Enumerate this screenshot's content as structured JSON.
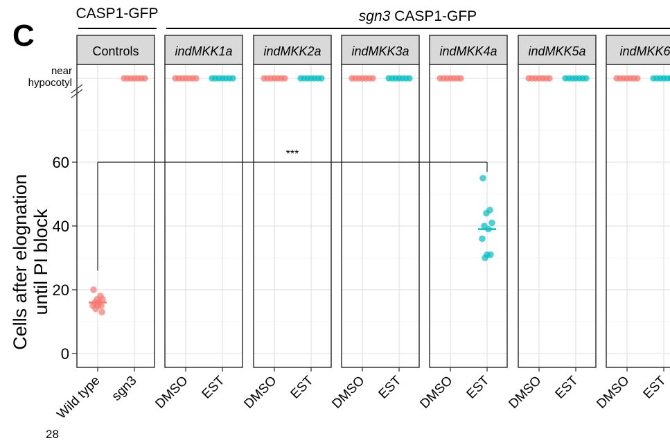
{
  "figure": {
    "panel_letter": "C",
    "page_number": "28",
    "groups": [
      {
        "label": "CASP1-GFP",
        "label_italic": "",
        "label_rest": ""
      },
      {
        "label": "",
        "label_italic": "sgn3",
        "label_rest": " CASP1-GFP"
      }
    ],
    "near_label_line1": "near",
    "near_label_line2": "hypocotyl",
    "significance": "***"
  },
  "chart_data": {
    "type": "scatter",
    "title": "",
    "xlabel": "",
    "ylabel": "Cells after elognation until PI block",
    "ylabel_line1": "Cells after elognation",
    "ylabel_line2": "until PI block",
    "ylim": [
      -2,
      82
    ],
    "yticks": [
      0,
      20,
      40,
      60
    ],
    "grid": true,
    "colors": {
      "red": "#F8766D",
      "teal": "#00BFC4"
    },
    "panels": [
      {
        "strip": "Controls",
        "italic": false,
        "categories": [
          "Wild type",
          "sgn3"
        ]
      },
      {
        "strip": "indMKK1a",
        "italic": true,
        "categories": [
          "DMSO",
          "EST"
        ]
      },
      {
        "strip": "indMKK2a",
        "italic": true,
        "categories": [
          "DMSO",
          "EST"
        ]
      },
      {
        "strip": "indMKK3a",
        "italic": true,
        "categories": [
          "DMSO",
          "EST"
        ]
      },
      {
        "strip": "indMKK4a",
        "italic": true,
        "categories": [
          "DMSO",
          "EST"
        ]
      },
      {
        "strip": "indMKK5a",
        "italic": true,
        "categories": [
          "DMSO",
          "EST"
        ]
      },
      {
        "strip": "indMKK6",
        "italic": true,
        "categories": [
          "DMSO",
          "EST"
        ]
      }
    ],
    "points": [
      {
        "panel": 0,
        "x": 1,
        "values": [
          20,
          18,
          17,
          17,
          16,
          16,
          15,
          15,
          15,
          14,
          13
        ],
        "color": "red"
      },
      {
        "panel": 4,
        "x": 2,
        "values": [
          55,
          45,
          44,
          41,
          40,
          39,
          36,
          31,
          31,
          30
        ],
        "color": "teal"
      }
    ],
    "means": [
      {
        "panel": 0,
        "x": 1,
        "value": 16,
        "color": "red"
      },
      {
        "panel": 4,
        "x": 2,
        "value": 39,
        "color": "teal"
      }
    ],
    "near_hypocotyl": [
      {
        "panel": 0,
        "x": 2,
        "color": "red"
      },
      {
        "panel": 1,
        "x": 1,
        "color": "red"
      },
      {
        "panel": 1,
        "x": 2,
        "color": "teal"
      },
      {
        "panel": 2,
        "x": 1,
        "color": "red"
      },
      {
        "panel": 2,
        "x": 2,
        "color": "teal"
      },
      {
        "panel": 3,
        "x": 1,
        "color": "red"
      },
      {
        "panel": 3,
        "x": 2,
        "color": "teal"
      },
      {
        "panel": 4,
        "x": 1,
        "color": "red"
      },
      {
        "panel": 5,
        "x": 1,
        "color": "red"
      },
      {
        "panel": 5,
        "x": 2,
        "color": "teal"
      },
      {
        "panel": 6,
        "x": 1,
        "color": "red"
      },
      {
        "panel": 6,
        "x": 2,
        "color": "teal"
      }
    ],
    "comparison": {
      "from_panel": 0,
      "from_x": 1,
      "to_panel": 4,
      "to_x": 2,
      "level": 60,
      "label": "***"
    }
  }
}
